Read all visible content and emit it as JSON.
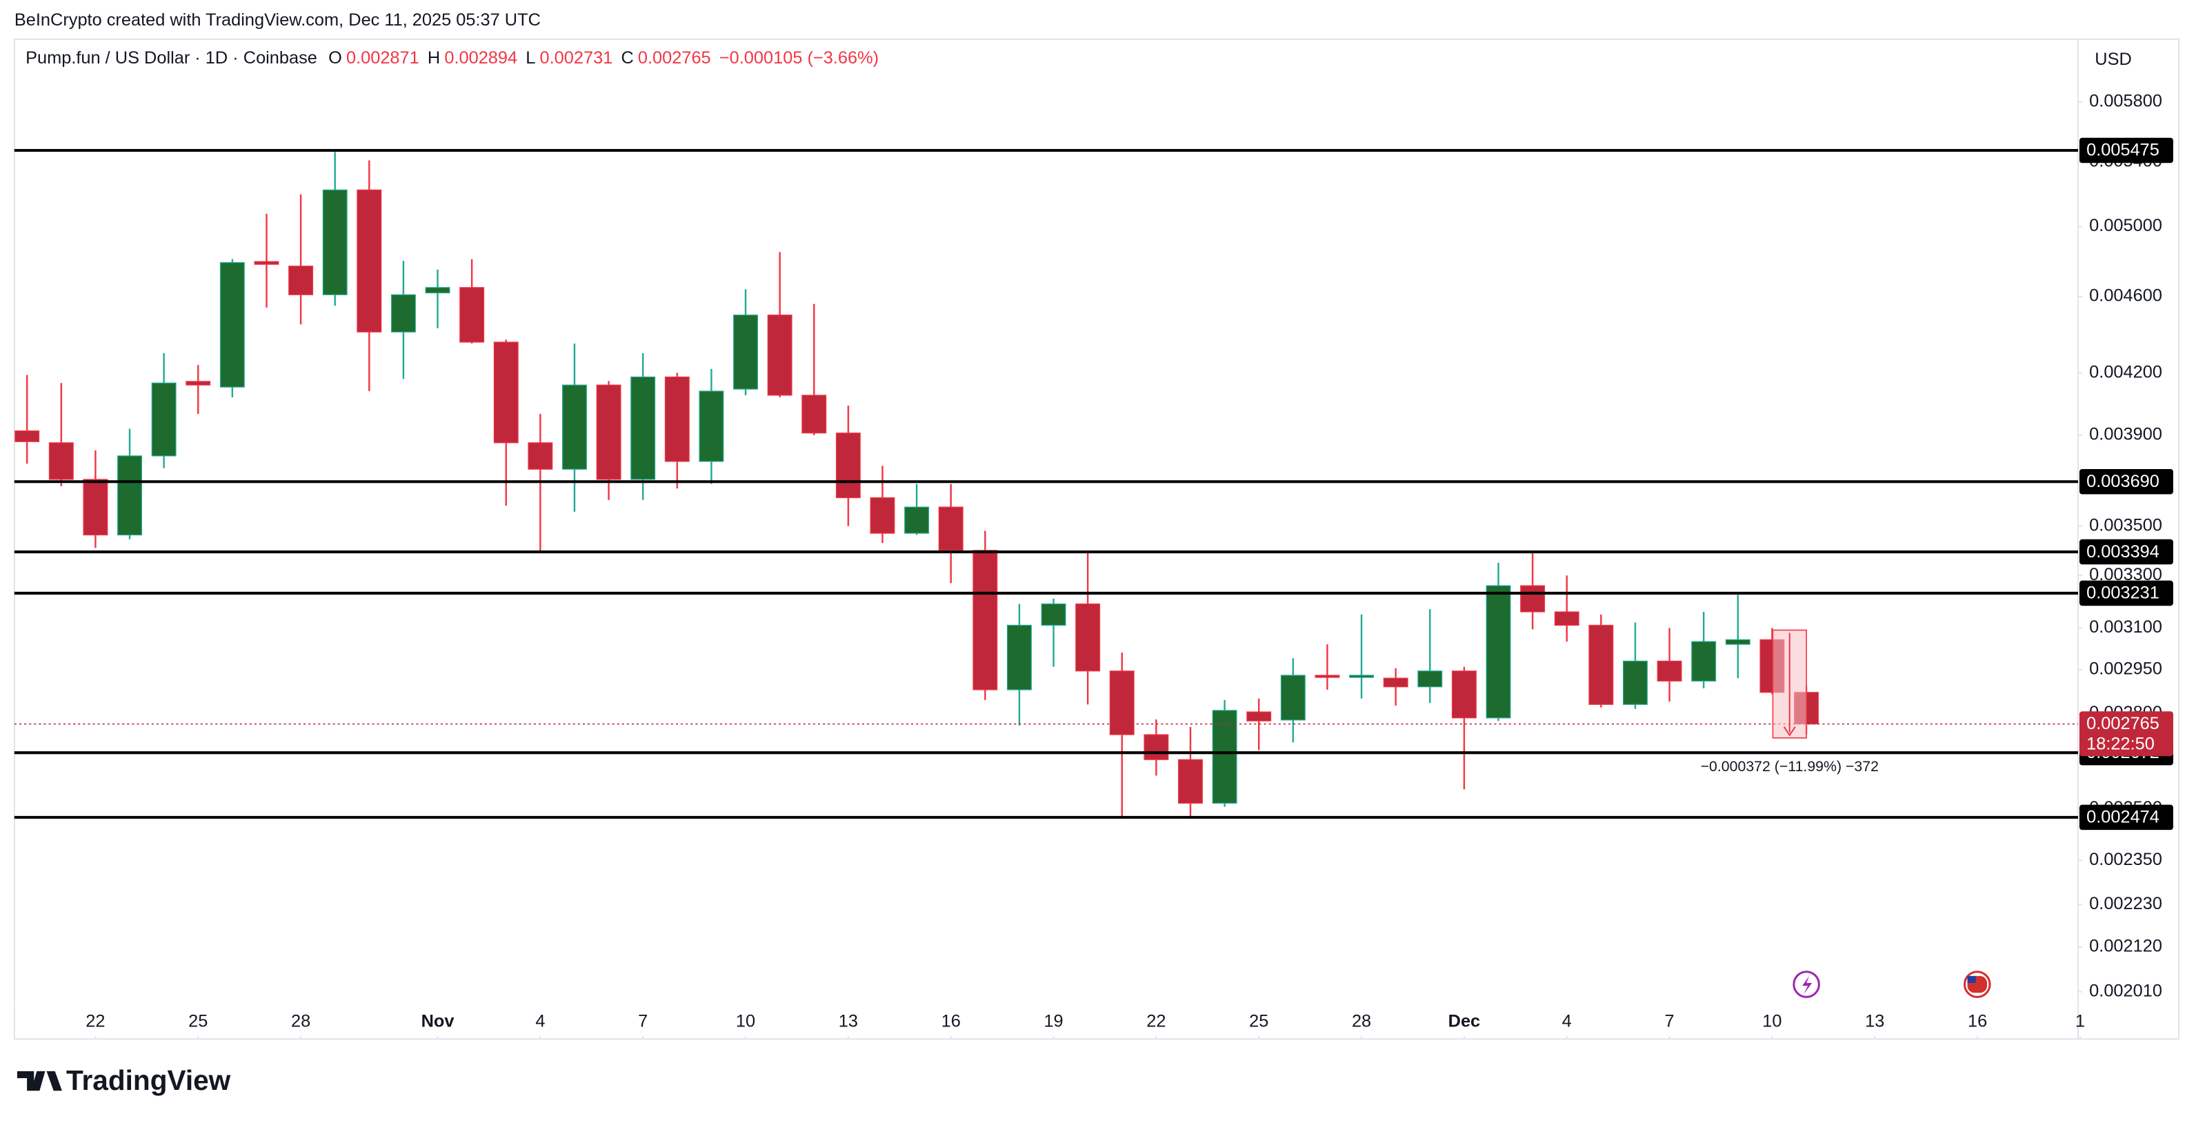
{
  "chart_data": {
    "type": "candlestick",
    "attribution": "BeInCrypto created with TradingView.com, Dec 11, 2025 05:37 UTC",
    "title": "Pump.fun / US Dollar · 1D · Coinbase",
    "legend_labels": {
      "open": "O",
      "high": "H",
      "low": "L",
      "close": "C"
    },
    "change_label": "−0.000105 (−3.66%)",
    "currency": "USD",
    "brand": "TradingView",
    "log_scale": true,
    "grid": false,
    "up_color": "#1d6b2f",
    "down_color": "#c0273a",
    "up_wick_color": "#22ab94",
    "down_wick_color": "#f23645",
    "xlim": [
      -0.37,
      59.94
    ],
    "xticks": [
      {
        "value": 2,
        "label": "22"
      },
      {
        "value": 5,
        "label": "25"
      },
      {
        "value": 8,
        "label": "28"
      },
      {
        "value": 12,
        "label": "Nov"
      },
      {
        "value": 15,
        "label": "4"
      },
      {
        "value": 18,
        "label": "7"
      },
      {
        "value": 21,
        "label": "10"
      },
      {
        "value": 24,
        "label": "13"
      },
      {
        "value": 27,
        "label": "16"
      },
      {
        "value": 30,
        "label": "19"
      },
      {
        "value": 33,
        "label": "22"
      },
      {
        "value": 36,
        "label": "25"
      },
      {
        "value": 39,
        "label": "28"
      },
      {
        "value": 42,
        "label": "Dec"
      },
      {
        "value": 45,
        "label": "4"
      },
      {
        "value": 48,
        "label": "7"
      },
      {
        "value": 51,
        "label": "10"
      },
      {
        "value": 54,
        "label": "13"
      },
      {
        "value": 57,
        "label": "16"
      },
      {
        "value": 60,
        "label": "1"
      }
    ],
    "ylim": [
      0.0019,
      0.00625
    ],
    "yticks": [
      {
        "value": 0.0058,
        "label": "0.005800"
      },
      {
        "value": 0.0054,
        "label": "0.005400"
      },
      {
        "value": 0.005,
        "label": "0.005000"
      },
      {
        "value": 0.0046,
        "label": "0.004600"
      },
      {
        "value": 0.0042,
        "label": "0.004200"
      },
      {
        "value": 0.0039,
        "label": "0.003900"
      },
      {
        "value": 0.0035,
        "label": "0.003500"
      },
      {
        "value": 0.0033,
        "label": "0.003300"
      },
      {
        "value": 0.0031,
        "label": "0.003100"
      },
      {
        "value": 0.00295,
        "label": "0.002950"
      },
      {
        "value": 0.0028,
        "label": "0.002800"
      },
      {
        "value": 0.0025,
        "label": "0.002500"
      },
      {
        "value": 0.00235,
        "label": "0.002350"
      },
      {
        "value": 0.00223,
        "label": "0.002230"
      },
      {
        "value": 0.00212,
        "label": "0.002120"
      },
      {
        "value": 0.00201,
        "label": "0.002010"
      }
    ],
    "open": [
      0.00392,
      0.003865,
      0.0037,
      0.003463,
      0.003805,
      0.004158,
      0.00413,
      0.004796,
      0.00477,
      0.00461,
      0.005223,
      0.00441,
      0.00462,
      0.00465,
      0.004357,
      0.003865,
      0.003745,
      0.00414,
      0.0037,
      0.00418,
      0.00378,
      0.00412,
      0.0045,
      0.00409,
      0.00391,
      0.00362,
      0.00347,
      0.00358,
      0.0034,
      0.00288,
      0.00311,
      0.00319,
      0.002945,
      0.00273,
      0.00265,
      0.002516,
      0.002805,
      0.002778,
      0.00293,
      0.002925,
      0.00292,
      0.00289,
      0.002945,
      0.002785,
      0.00326,
      0.00316,
      0.00311,
      0.00283,
      0.00298,
      0.00291,
      0.00304,
      0.003057,
      0.002871
    ],
    "high": [
      0.00419,
      0.00415,
      0.00383,
      0.00393,
      0.0043,
      0.00424,
      0.00481,
      0.005077,
      0.005195,
      0.005465,
      0.00541,
      0.0048,
      0.00475,
      0.00481,
      0.00437,
      0.004,
      0.00435,
      0.00416,
      0.0043,
      0.0042,
      0.00422,
      0.00464,
      0.00485,
      0.00456,
      0.00404,
      0.00376,
      0.00368,
      0.00368,
      0.00348,
      0.00319,
      0.00321,
      0.00339,
      0.00301,
      0.00278,
      0.002755,
      0.002845,
      0.00285,
      0.00299,
      0.00304,
      0.00315,
      0.002955,
      0.00317,
      0.00296,
      0.00335,
      0.00339,
      0.0033,
      0.00315,
      0.00312,
      0.0031,
      0.00316,
      0.003225,
      0.0031,
      0.002894
    ],
    "low": [
      0.00377,
      0.00367,
      0.00341,
      0.003445,
      0.00375,
      0.004,
      0.00408,
      0.00454,
      0.00445,
      0.00455,
      0.00411,
      0.00417,
      0.00443,
      0.00435,
      0.003586,
      0.003394,
      0.00356,
      0.00361,
      0.00361,
      0.00366,
      0.00368,
      0.00409,
      0.00408,
      0.0039,
      0.0035,
      0.00343,
      0.003463,
      0.00327,
      0.002845,
      0.00276,
      0.00296,
      0.00283,
      0.002474,
      0.0026,
      0.002474,
      0.002505,
      0.00268,
      0.002705,
      0.00288,
      0.00285,
      0.002826,
      0.002835,
      0.002558,
      0.002775,
      0.003095,
      0.00305,
      0.00282,
      0.002815,
      0.00284,
      0.002885,
      0.00292,
      0.002865,
      0.002731
    ],
    "close": [
      0.00387,
      0.0037,
      0.003463,
      0.003805,
      0.00415,
      0.00414,
      0.00479,
      0.00478,
      0.00461,
      0.005223,
      0.00441,
      0.00461,
      0.00465,
      0.004357,
      0.003865,
      0.003745,
      0.00414,
      0.0037,
      0.00418,
      0.00378,
      0.00411,
      0.0045,
      0.00409,
      0.00391,
      0.00362,
      0.00347,
      0.00358,
      0.0034,
      0.00288,
      0.00311,
      0.00319,
      0.002945,
      0.00273,
      0.00265,
      0.002516,
      0.00281,
      0.002775,
      0.00293,
      0.002925,
      0.00293,
      0.00289,
      0.002945,
      0.002785,
      0.00326,
      0.00316,
      0.00311,
      0.00283,
      0.00298,
      0.00291,
      0.00305,
      0.003057,
      0.002871,
      0.002765
    ],
    "levels": [
      0.005475,
      {
        "value": 0.00369,
        "label": "0.003690"
      },
      0.003394,
      0.003231,
      0.002672,
      0.002474
    ],
    "level_color": "#000000",
    "current_price": 0.002765,
    "countdown": "18:22:50",
    "measure_label": "−0.000372 (−11.99%) −372"
  }
}
